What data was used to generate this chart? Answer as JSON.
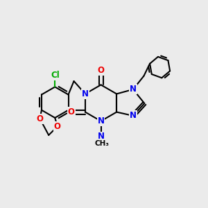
{
  "bg_color": "#ebebeb",
  "bond_color": "#000000",
  "bond_width": 1.5,
  "atom_colors": {
    "N": "#0000ee",
    "O": "#ee0000",
    "Cl": "#00aa00",
    "C": "#000000"
  },
  "figsize": [
    3.0,
    3.0
  ],
  "dpi": 100
}
